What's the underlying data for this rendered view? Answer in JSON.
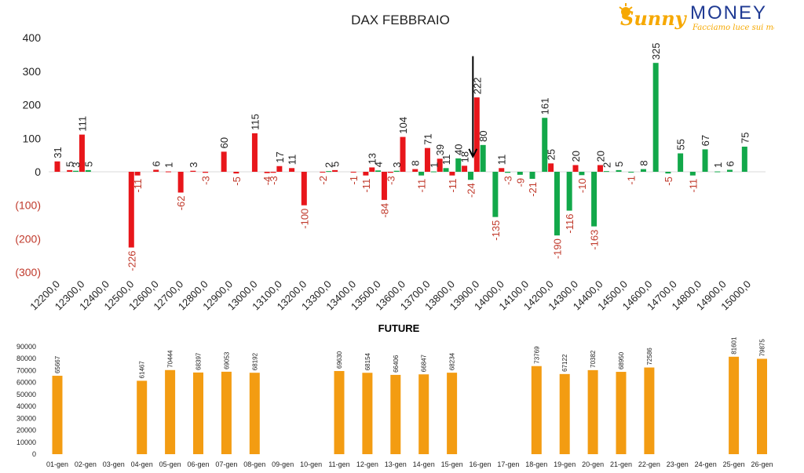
{
  "logo": {
    "brand_left": "Sunny",
    "brand_right": "MONEY",
    "tagline": "Facciamo luce sui mercati",
    "colors": {
      "sun": "#f6a800",
      "brand_text": "#1f3a93"
    }
  },
  "chart_data": [
    {
      "type": "bar",
      "title": "DAX FEBBRAIO",
      "xlabel": "",
      "ylabel": "",
      "ylim": [
        -300,
        400
      ],
      "y_ticks": [
        400,
        300,
        200,
        100,
        0,
        -100,
        -200,
        -300
      ],
      "y_tick_labels": [
        "400",
        "300",
        "200",
        "100",
        "0",
        "(100)",
        "(200)",
        "(300)"
      ],
      "x_tick_labels": [
        "12200,0",
        "12300,0",
        "12400,0",
        "12500,0",
        "12600,0",
        "12700,0",
        "12800,0",
        "12900,0",
        "13000,0",
        "13100,0",
        "13200,0",
        "13300,0",
        "13400,0",
        "13500,0",
        "13600,0",
        "13700,0",
        "13800,0",
        "13900,0",
        "14000,0",
        "14100,0",
        "14200,0",
        "14300,0",
        "14400,0",
        "14500,0",
        "14600,0",
        "14700,0",
        "14800,0",
        "14900,0",
        "15000,0"
      ],
      "grid": false,
      "colors": {
        "calls": "#e8161b",
        "puts": "#12a84a",
        "negative_tick": "#c0392b",
        "arrow": "#000000"
      },
      "annotation": {
        "type": "arrow",
        "at_strike": 13900,
        "value_from": 345,
        "value_to": 45
      },
      "series": [
        {
          "strikes": [
            12200,
            12250,
            12300,
            12350,
            12500,
            12550,
            12600,
            12650,
            12700,
            12750,
            12800,
            12850,
            12900,
            12950,
            13000,
            13050,
            13100,
            13150,
            13200,
            13250,
            13300,
            13350,
            13400,
            13450,
            13500,
            13550,
            13600,
            13650,
            13700,
            13750,
            13800,
            13850,
            13900,
            13950,
            14000,
            14050,
            14100,
            14150,
            14200,
            14250,
            14300,
            14350,
            14400,
            14450,
            14500,
            14550,
            14600,
            14650,
            14700,
            14750,
            14800,
            14850,
            14900,
            14950,
            15000
          ],
          "values": [
            31,
            5,
            111,
            0,
            -226,
            6,
            1,
            -62,
            3,
            -3,
            60,
            -5,
            115,
            -4,
            17,
            11,
            -100,
            -2,
            5,
            -1,
            -11,
            13,
            -84,
            -3,
            104,
            8,
            71,
            39,
            11,
            18,
            222,
            11,
            0,
            0,
            25,
            20,
            20,
            0,
            0,
            0,
            0,
            0,
            0,
            0,
            0,
            0,
            0,
            0,
            0,
            0,
            0,
            0,
            0,
            0,
            0
          ]
        },
        {
          "strikes": [
            12300,
            12350,
            12500,
            12600,
            12800,
            12950,
            13300,
            13500,
            13550,
            13650,
            13700,
            13750,
            13800,
            13850,
            13900,
            13950,
            14000,
            14050,
            14100,
            14150,
            14200,
            14250,
            14300,
            14350,
            14400,
            14450,
            14500,
            14550,
            14600,
            14650,
            14700,
            14750,
            14800,
            14850,
            14900,
            14950,
            15000
          ],
          "values": [
            3,
            5,
            -11,
            0,
            0,
            -3,
            0,
            4,
            3,
            -11,
            11,
            40,
            -24,
            80,
            -135,
            -3,
            -9,
            -21,
            161,
            -190,
            -116,
            -10,
            -163,
            2,
            5,
            -1,
            8,
            325,
            -5,
            55,
            -11,
            67,
            1,
            6,
            75,
            0,
            0
          ]
        }
      ],
      "bars": [
        {
          "x": 12200,
          "v": 31,
          "c": "calls",
          "lbl": "31"
        },
        {
          "x": 12250,
          "v": 5,
          "c": "calls",
          "lbl": "5"
        },
        {
          "x": 12275,
          "v": 3,
          "c": "puts",
          "lbl": "3"
        },
        {
          "x": 12300,
          "v": 111,
          "c": "calls",
          "lbl": "111"
        },
        {
          "x": 12325,
          "v": 5,
          "c": "puts",
          "lbl": "5"
        },
        {
          "x": 12500,
          "v": -226,
          "c": "calls",
          "lbl": "-226"
        },
        {
          "x": 12525,
          "v": -11,
          "c": "calls",
          "lbl": "-11"
        },
        {
          "x": 12600,
          "v": 6,
          "c": "calls",
          "lbl": "6"
        },
        {
          "x": 12650,
          "v": 1,
          "c": "calls",
          "lbl": "1"
        },
        {
          "x": 12700,
          "v": -62,
          "c": "calls",
          "lbl": "-62"
        },
        {
          "x": 12750,
          "v": 3,
          "c": "calls",
          "lbl": "3"
        },
        {
          "x": 12800,
          "v": -3,
          "c": "calls",
          "lbl": "-3"
        },
        {
          "x": 12875,
          "v": 60,
          "c": "calls",
          "lbl": "60"
        },
        {
          "x": 12925,
          "v": -5,
          "c": "calls",
          "lbl": "-5"
        },
        {
          "x": 13000,
          "v": 115,
          "c": "calls",
          "lbl": "115"
        },
        {
          "x": 13050,
          "v": -4,
          "c": "calls",
          "lbl": "-4"
        },
        {
          "x": 13075,
          "v": -3,
          "c": "calls",
          "lbl": "-3"
        },
        {
          "x": 13100,
          "v": 17,
          "c": "calls",
          "lbl": "17"
        },
        {
          "x": 13150,
          "v": 11,
          "c": "calls",
          "lbl": "11"
        },
        {
          "x": 13200,
          "v": -100,
          "c": "calls",
          "lbl": "-100"
        },
        {
          "x": 13275,
          "v": -2,
          "c": "calls",
          "lbl": "-2"
        },
        {
          "x": 13300,
          "v": 2,
          "c": "puts",
          "lbl": "2"
        },
        {
          "x": 13325,
          "v": 5,
          "c": "calls",
          "lbl": "5"
        },
        {
          "x": 13400,
          "v": -1,
          "c": "calls",
          "lbl": "-1"
        },
        {
          "x": 13450,
          "v": -11,
          "c": "calls",
          "lbl": "-11"
        },
        {
          "x": 13475,
          "v": 13,
          "c": "calls",
          "lbl": "13"
        },
        {
          "x": 13500,
          "v": 4,
          "c": "puts",
          "lbl": "4"
        },
        {
          "x": 13525,
          "v": -84,
          "c": "calls",
          "lbl": "-84"
        },
        {
          "x": 13550,
          "v": -3,
          "c": "calls",
          "lbl": "-3"
        },
        {
          "x": 13575,
          "v": 3,
          "c": "puts",
          "lbl": "3"
        },
        {
          "x": 13600,
          "v": 104,
          "c": "calls",
          "lbl": "104"
        },
        {
          "x": 13650,
          "v": 8,
          "c": "calls",
          "lbl": "8"
        },
        {
          "x": 13675,
          "v": -11,
          "c": "puts",
          "lbl": "-11"
        },
        {
          "x": 13700,
          "v": 71,
          "c": "calls",
          "lbl": "71"
        },
        {
          "x": 13725,
          "v": 1,
          "c": "puts",
          "lbl": "1"
        },
        {
          "x": 13750,
          "v": 39,
          "c": "calls",
          "lbl": "39"
        },
        {
          "x": 13775,
          "v": 11,
          "c": "puts",
          "lbl": "11"
        },
        {
          "x": 13800,
          "v": -11,
          "c": "calls",
          "lbl": "-11"
        },
        {
          "x": 13825,
          "v": 40,
          "c": "puts",
          "lbl": "40"
        },
        {
          "x": 13850,
          "v": 18,
          "c": "calls",
          "lbl": "18"
        },
        {
          "x": 13875,
          "v": -24,
          "c": "puts",
          "lbl": "-24"
        },
        {
          "x": 13900,
          "v": 222,
          "c": "calls",
          "lbl": "222"
        },
        {
          "x": 13925,
          "v": 80,
          "c": "puts",
          "lbl": "80"
        },
        {
          "x": 13975,
          "v": -135,
          "c": "puts",
          "lbl": "-135"
        },
        {
          "x": 14000,
          "v": 11,
          "c": "calls",
          "lbl": "11"
        },
        {
          "x": 14025,
          "v": -3,
          "c": "puts",
          "lbl": "-3"
        },
        {
          "x": 14075,
          "v": -9,
          "c": "puts",
          "lbl": "-9"
        },
        {
          "x": 14125,
          "v": -21,
          "c": "puts",
          "lbl": "-21"
        },
        {
          "x": 14175,
          "v": 161,
          "c": "puts",
          "lbl": "161"
        },
        {
          "x": 14200,
          "v": 25,
          "c": "calls",
          "lbl": "25"
        },
        {
          "x": 14225,
          "v": -190,
          "c": "puts",
          "lbl": "-190"
        },
        {
          "x": 14275,
          "v": -116,
          "c": "puts",
          "lbl": "-116"
        },
        {
          "x": 14300,
          "v": 20,
          "c": "calls",
          "lbl": "20"
        },
        {
          "x": 14325,
          "v": -10,
          "c": "puts",
          "lbl": "-10"
        },
        {
          "x": 14375,
          "v": -163,
          "c": "puts",
          "lbl": "-163"
        },
        {
          "x": 14400,
          "v": 20,
          "c": "calls",
          "lbl": "20"
        },
        {
          "x": 14425,
          "v": 2,
          "c": "puts",
          "lbl": "2"
        },
        {
          "x": 14475,
          "v": 5,
          "c": "puts",
          "lbl": "5"
        },
        {
          "x": 14525,
          "v": -1,
          "c": "puts",
          "lbl": "-1"
        },
        {
          "x": 14575,
          "v": 8,
          "c": "puts",
          "lbl": "8"
        },
        {
          "x": 14625,
          "v": 325,
          "c": "puts",
          "lbl": "325"
        },
        {
          "x": 14675,
          "v": -5,
          "c": "puts",
          "lbl": "-5"
        },
        {
          "x": 14725,
          "v": 55,
          "c": "puts",
          "lbl": "55"
        },
        {
          "x": 14775,
          "v": -11,
          "c": "puts",
          "lbl": "-11"
        },
        {
          "x": 14825,
          "v": 67,
          "c": "puts",
          "lbl": "67"
        },
        {
          "x": 14875,
          "v": 1,
          "c": "puts",
          "lbl": "1"
        },
        {
          "x": 14925,
          "v": 6,
          "c": "puts",
          "lbl": "6"
        },
        {
          "x": 14985,
          "v": 75,
          "c": "puts",
          "lbl": "75"
        }
      ]
    },
    {
      "type": "bar",
      "title": "FUTURE",
      "xlabel": "",
      "ylabel": "",
      "ylim": [
        0,
        90000
      ],
      "y_ticks": [
        0,
        10000,
        20000,
        30000,
        40000,
        50000,
        60000,
        70000,
        80000,
        90000
      ],
      "y_tick_labels": [
        "0",
        "10000",
        "20000",
        "30000",
        "40000",
        "50000",
        "60000",
        "70000",
        "80000",
        "90000"
      ],
      "grid": false,
      "colors": {
        "bars": "#f39c12"
      },
      "categories": [
        "01-gen",
        "02-gen",
        "03-gen",
        "04-gen",
        "05-gen",
        "06-gen",
        "07-gen",
        "08-gen",
        "09-gen",
        "10-gen",
        "11-gen",
        "12-gen",
        "13-gen",
        "14-gen",
        "15-gen",
        "16-gen",
        "17-gen",
        "18-gen",
        "19-gen",
        "20-gen",
        "21-gen",
        "22-gen",
        "23-gen",
        "24-gen",
        "25-gen",
        "26-gen"
      ],
      "values": [
        65667,
        null,
        null,
        61467,
        70444,
        68397,
        69053,
        68192,
        null,
        null,
        69630,
        68154,
        66406,
        66847,
        68234,
        null,
        null,
        73769,
        67122,
        70382,
        68950,
        72586,
        null,
        null,
        81601,
        79875
      ],
      "value_labels": [
        "65667",
        "",
        "",
        "61467",
        "70444",
        "68397",
        "69053",
        "68192",
        "",
        "",
        "69630",
        "68154",
        "66406",
        "66847",
        "68234",
        "",
        "",
        "73769",
        "67122",
        "70382",
        "68950",
        "72586",
        "",
        "",
        "81601",
        "79875"
      ]
    }
  ]
}
